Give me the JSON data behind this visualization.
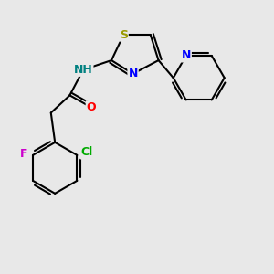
{
  "bg_color": "#e8e8e8",
  "atom_colors": {
    "S": "#999900",
    "N_thiazole": "#0000ff",
    "N_pyridine": "#0000ff",
    "NH": "#008080",
    "O": "#ff0000",
    "Cl": "#00aa00",
    "F": "#cc00cc",
    "C": "#000000"
  },
  "bond_color": "#000000",
  "bond_width": 1.5
}
